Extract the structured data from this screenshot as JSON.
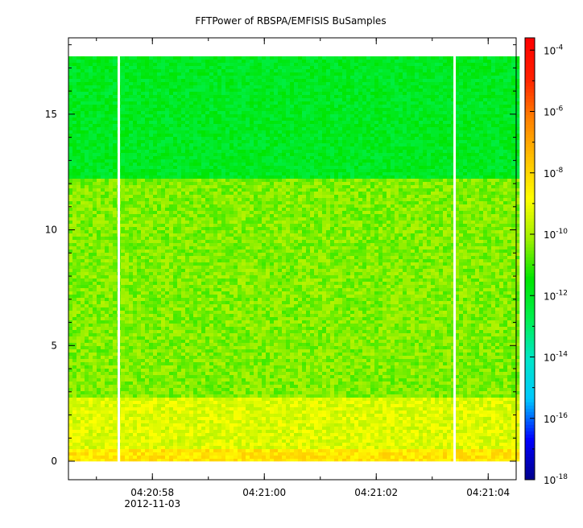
{
  "chart_data": {
    "type": "heatmap",
    "title": "FFTPower of RBSPA/EMFISIS  BuSamples",
    "xlabel": "",
    "ylabel": "",
    "x_tick_labels": [
      "04:20:58",
      "04:21:00",
      "04:21:02",
      "04:21:04"
    ],
    "x_date_label": "2012-11-03",
    "x_ticks": [
      {
        "label": "04:20:58",
        "sub": "2012-11-03"
      },
      {
        "label": "04:21:00",
        "sub": ""
      },
      {
        "label": "04:21:02",
        "sub": ""
      },
      {
        "label": "04:21:04",
        "sub": ""
      }
    ],
    "xlim": [
      "04:20:56.5",
      "04:21:04.5"
    ],
    "y_ticks": [
      0,
      5,
      10,
      15
    ],
    "ylim": [
      -0.8,
      18.3
    ],
    "data_y_range": [
      0,
      17.5
    ],
    "gaps": [
      "04:20:57.4",
      "04:21:03.4"
    ],
    "bands": [
      {
        "y_range": [
          0,
          0.5
        ],
        "log10_power": -8.3
      },
      {
        "y_range": [
          0.5,
          2.8
        ],
        "log10_power": -9.3
      },
      {
        "y_range": [
          2.8,
          12.2
        ],
        "log10_power": -10.4
      },
      {
        "y_range": [
          12.2,
          17.5
        ],
        "log10_power": -12.0
      }
    ],
    "colorbar": {
      "scale": "log",
      "range": [
        -18,
        -3.6
      ],
      "tick_labels": [
        {
          "base": "10",
          "exp": "-4",
          "value": -4
        },
        {
          "base": "10",
          "exp": "-6",
          "value": -6
        },
        {
          "base": "10",
          "exp": "-8",
          "value": -8
        },
        {
          "base": "10",
          "exp": "-10",
          "value": -10
        },
        {
          "base": "10",
          "exp": "-12",
          "value": -12
        },
        {
          "base": "10",
          "exp": "-14",
          "value": -14
        },
        {
          "base": "10",
          "exp": "-16",
          "value": -16
        },
        {
          "base": "10",
          "exp": "-18",
          "value": -18
        }
      ],
      "colormap": [
        "#00008b",
        "#0000ff",
        "#00c8ff",
        "#00e6c8",
        "#00f050",
        "#00e600",
        "#a0f000",
        "#ffff00",
        "#ffc000",
        "#ff8000",
        "#ff2000",
        "#ff0000"
      ]
    }
  }
}
